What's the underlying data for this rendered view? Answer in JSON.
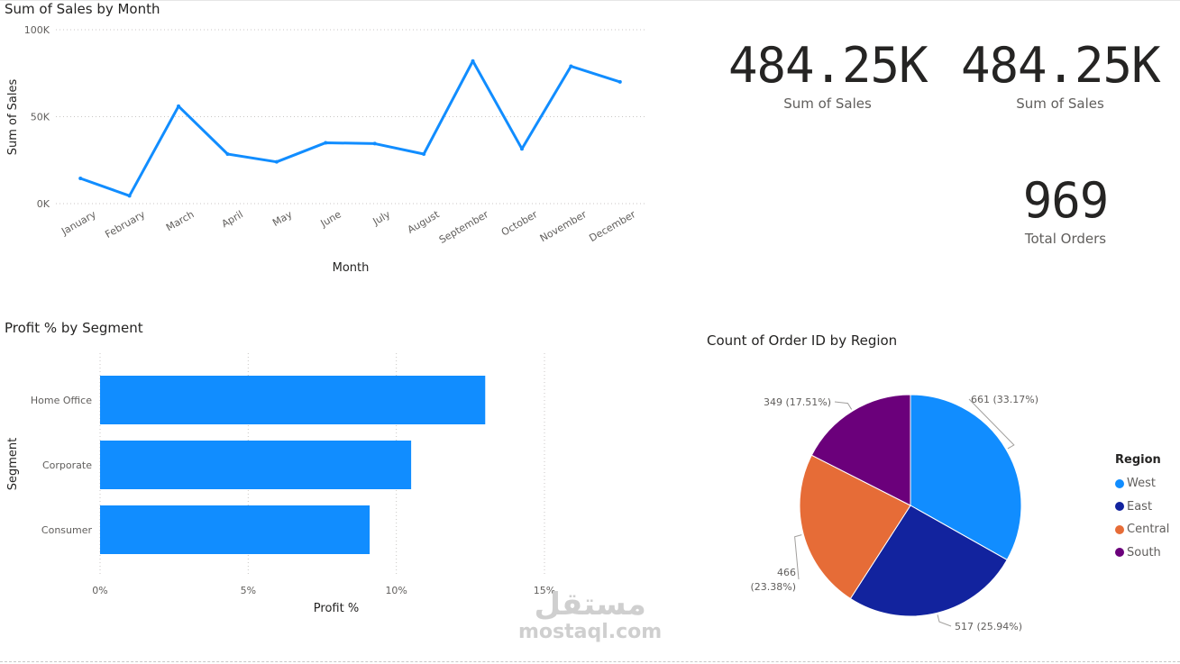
{
  "colors": {
    "line": "#118dff",
    "bar": "#118dff",
    "grid": "#c8c6c4",
    "west": "#118dff",
    "east": "#12239e",
    "central": "#e66c37",
    "south": "#6b007b"
  },
  "cards": [
    {
      "value": "484.25K",
      "label": "Sum of Sales"
    },
    {
      "value": "484.25K",
      "label": "Sum of Sales"
    },
    {
      "value": "969",
      "label": "Total Orders"
    }
  ],
  "legend": {
    "title": "Region",
    "items": [
      {
        "label": "West",
        "color": "#118dff"
      },
      {
        "label": "East",
        "color": "#12239e"
      },
      {
        "label": "Central",
        "color": "#e66c37"
      },
      {
        "label": "South",
        "color": "#6b007b"
      }
    ]
  },
  "watermark": {
    "arabic": "مستقل",
    "latin": "mostaql.com"
  },
  "chart_data": [
    {
      "type": "line",
      "title": "Sum of Sales by Month",
      "xlabel": "Month",
      "ylabel": "Sum of Sales",
      "categories": [
        "January",
        "February",
        "March",
        "April",
        "May",
        "June",
        "July",
        "August",
        "September",
        "October",
        "November",
        "December"
      ],
      "values": [
        14500,
        4500,
        56000,
        28500,
        24000,
        35000,
        34500,
        28500,
        82000,
        31500,
        79000,
        70000
      ],
      "ylim": [
        0,
        100000
      ],
      "yticks": [
        "0K",
        "50K",
        "100K"
      ],
      "grid": true
    },
    {
      "type": "bar",
      "orientation": "horizontal",
      "title": "Profit % by Segment",
      "xlabel": "Profit %",
      "ylabel": "Segment",
      "categories": [
        "Home Office",
        "Corporate",
        "Consumer"
      ],
      "values": [
        13.0,
        10.5,
        9.1
      ],
      "xlim": [
        0,
        15
      ],
      "xticks": [
        "0%",
        "5%",
        "10%",
        "15%"
      ],
      "grid": true
    },
    {
      "type": "pie",
      "title": "Count of Order ID by Region",
      "legend_title": "Region",
      "legend_position": "right",
      "slices": [
        {
          "label": "West",
          "value": 661,
          "data_label": "661 (33.17%)"
        },
        {
          "label": "East",
          "value": 517,
          "data_label": "517 (25.94%)"
        },
        {
          "label": "Central",
          "value": 466,
          "data_label_lines": [
            "466",
            "(23.38%)"
          ]
        },
        {
          "label": "South",
          "value": 349,
          "data_label": "349 (17.51%)"
        }
      ]
    }
  ]
}
